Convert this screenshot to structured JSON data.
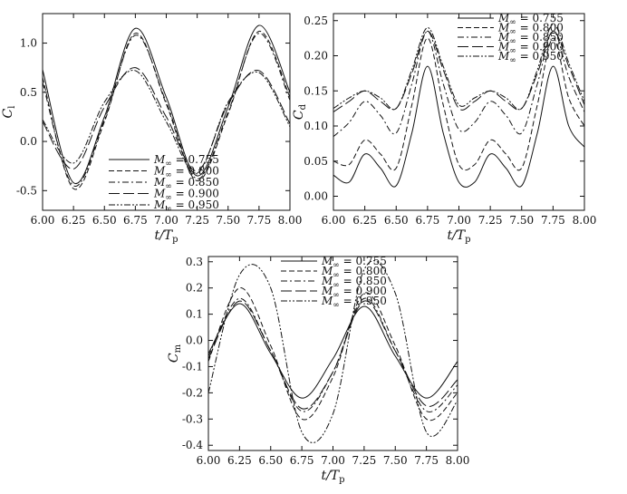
{
  "chart_data": [
    {
      "id": "cl",
      "type": "line",
      "ylabel": {
        "main": "C",
        "sub": "l"
      },
      "xlabel": {
        "main": "t/T",
        "sub": "p"
      },
      "xlim": [
        6.0,
        8.0
      ],
      "ylim": [
        -0.7,
        1.3
      ],
      "xticks": [
        6.0,
        6.25,
        6.5,
        6.75,
        7.0,
        7.25,
        7.5,
        7.75,
        8.0
      ],
      "xtick_labels": [
        "6.00",
        "6.25",
        "6.50",
        "6.75",
        "7.00",
        "7.25",
        "7.50",
        "7.75",
        "8.00"
      ],
      "yticks": [
        -0.5,
        0.0,
        0.5,
        1.0
      ],
      "ytick_labels": [
        "-0.5",
        "0.0",
        "0.5",
        "1.0"
      ],
      "legend": "bottom-center",
      "series": [
        {
          "name": "M∞ = 0.755",
          "label_main": "M",
          "label_sub": "∞",
          "label_rest": " = 0.755",
          "style": "solid",
          "x": [
            6.0,
            6.25,
            6.5,
            6.75,
            7.0,
            7.25,
            7.5,
            7.75,
            8.0
          ],
          "y": [
            0.73,
            -0.42,
            0.25,
            1.15,
            0.45,
            -0.35,
            0.35,
            1.18,
            0.5
          ]
        },
        {
          "name": "M∞ = 0.800",
          "label_main": "M",
          "label_sub": "∞",
          "label_rest": " = 0.800",
          "style": "dashed",
          "x": [
            6.0,
            6.25,
            6.5,
            6.75,
            7.0,
            7.25,
            7.5,
            7.75,
            8.0
          ],
          "y": [
            0.65,
            -0.48,
            0.2,
            1.1,
            0.38,
            -0.4,
            0.28,
            1.12,
            0.45
          ]
        },
        {
          "name": "M∞ = 0.850",
          "label_main": "M",
          "label_sub": "∞",
          "label_rest": " = 0.850",
          "style": "dashdot",
          "x": [
            6.0,
            6.25,
            6.5,
            6.75,
            7.0,
            7.25,
            7.5,
            7.75,
            8.0
          ],
          "y": [
            0.6,
            -0.45,
            0.22,
            1.08,
            0.4,
            -0.38,
            0.3,
            1.1,
            0.42
          ]
        },
        {
          "name": "M∞ = 0.900",
          "label_main": "M",
          "label_sub": "∞",
          "label_rest": " = 0.900",
          "style": "longdash",
          "x": [
            6.0,
            6.25,
            6.5,
            6.75,
            7.0,
            7.25,
            7.5,
            7.75,
            8.0
          ],
          "y": [
            0.2,
            -0.28,
            0.35,
            0.75,
            0.25,
            -0.3,
            0.38,
            0.72,
            0.18
          ]
        },
        {
          "name": "M∞ = 0.950",
          "label_main": "M",
          "label_sub": "∞",
          "label_rest": " = 0.950",
          "style": "dashdotdot",
          "x": [
            6.0,
            6.25,
            6.5,
            6.75,
            7.0,
            7.25,
            7.5,
            7.75,
            8.0
          ],
          "y": [
            0.22,
            -0.22,
            0.4,
            0.72,
            0.2,
            -0.32,
            0.4,
            0.7,
            0.15
          ]
        }
      ]
    },
    {
      "id": "cd",
      "type": "line",
      "ylabel": {
        "main": "C",
        "sub": "d"
      },
      "xlabel": {
        "main": "t/T",
        "sub": "p"
      },
      "xlim": [
        6.0,
        8.0
      ],
      "ylim": [
        -0.02,
        0.26
      ],
      "xticks": [
        6.0,
        6.25,
        6.5,
        6.75,
        7.0,
        7.25,
        7.5,
        7.75,
        8.0
      ],
      "xtick_labels": [
        "6.00",
        "6.25",
        "6.50",
        "6.75",
        "7.00",
        "7.25",
        "7.50",
        "7.75",
        "8.00"
      ],
      "yticks": [
        0.0,
        0.05,
        0.1,
        0.15,
        0.2,
        0.25
      ],
      "ytick_labels": [
        "0.00",
        "0.05",
        "0.10",
        "0.15",
        "0.20",
        "0.25"
      ],
      "legend": "top-right",
      "series": [
        {
          "name": "M∞ = 0.755",
          "label_main": "M",
          "label_sub": "∞",
          "label_rest": " = 0.755",
          "style": "solid",
          "x": [
            6.0,
            6.125,
            6.25,
            6.375,
            6.5,
            6.625,
            6.75,
            6.875,
            7.0,
            7.125,
            7.25,
            7.375,
            7.5,
            7.625,
            7.75,
            7.875,
            8.0
          ],
          "y": [
            0.03,
            0.02,
            0.06,
            0.04,
            0.015,
            0.09,
            0.185,
            0.09,
            0.02,
            0.02,
            0.06,
            0.04,
            0.015,
            0.09,
            0.185,
            0.1,
            0.07
          ]
        },
        {
          "name": "M∞ = 0.800",
          "label_main": "M",
          "label_sub": "∞",
          "label_rest": " = 0.800",
          "style": "dashed",
          "x": [
            6.0,
            6.125,
            6.25,
            6.375,
            6.5,
            6.625,
            6.75,
            6.875,
            7.0,
            7.125,
            7.25,
            7.375,
            7.5,
            7.625,
            7.75,
            7.875,
            8.0
          ],
          "y": [
            0.05,
            0.045,
            0.08,
            0.06,
            0.04,
            0.13,
            0.225,
            0.13,
            0.045,
            0.045,
            0.08,
            0.06,
            0.04,
            0.13,
            0.225,
            0.14,
            0.1
          ]
        },
        {
          "name": "M∞ = 0.850",
          "label_main": "M",
          "label_sub": "∞",
          "label_rest": " = 0.850",
          "style": "dashdot",
          "x": [
            6.0,
            6.125,
            6.25,
            6.375,
            6.5,
            6.625,
            6.75,
            6.875,
            7.0,
            7.125,
            7.25,
            7.375,
            7.5,
            7.625,
            7.75,
            7.875,
            8.0
          ],
          "y": [
            0.085,
            0.105,
            0.135,
            0.115,
            0.09,
            0.16,
            0.235,
            0.16,
            0.095,
            0.105,
            0.135,
            0.115,
            0.09,
            0.16,
            0.235,
            0.17,
            0.12
          ]
        },
        {
          "name": "M∞ = 0.900",
          "label_main": "M",
          "label_sub": "∞",
          "label_rest": " = 0.900",
          "style": "longdash",
          "x": [
            6.0,
            6.125,
            6.25,
            6.375,
            6.5,
            6.625,
            6.75,
            6.875,
            7.0,
            7.125,
            7.25,
            7.375,
            7.5,
            7.625,
            7.75,
            7.875,
            8.0
          ],
          "y": [
            0.12,
            0.135,
            0.15,
            0.135,
            0.125,
            0.175,
            0.235,
            0.18,
            0.125,
            0.135,
            0.15,
            0.135,
            0.125,
            0.175,
            0.235,
            0.185,
            0.13
          ]
        },
        {
          "name": "M∞ = 0.950",
          "label_main": "M",
          "label_sub": "∞",
          "label_rest": " = 0.950",
          "style": "dashdotdot",
          "x": [
            6.0,
            6.125,
            6.25,
            6.375,
            6.5,
            6.625,
            6.75,
            6.875,
            7.0,
            7.125,
            7.25,
            7.375,
            7.5,
            7.625,
            7.75,
            7.875,
            8.0
          ],
          "y": [
            0.125,
            0.14,
            0.15,
            0.14,
            0.125,
            0.18,
            0.24,
            0.185,
            0.13,
            0.14,
            0.15,
            0.14,
            0.125,
            0.18,
            0.245,
            0.19,
            0.135
          ]
        }
      ]
    },
    {
      "id": "cm",
      "type": "line",
      "ylabel": {
        "main": "C",
        "sub": "m"
      },
      "xlabel": {
        "main": "t/T",
        "sub": "p"
      },
      "xlim": [
        6.0,
        8.0
      ],
      "ylim": [
        -0.42,
        0.32
      ],
      "xticks": [
        6.0,
        6.25,
        6.5,
        6.75,
        7.0,
        7.25,
        7.5,
        7.75,
        8.0
      ],
      "xtick_labels": [
        "6.00",
        "6.25",
        "6.50",
        "6.75",
        "7.00",
        "7.25",
        "7.50",
        "7.75",
        "8.00"
      ],
      "yticks": [
        -0.4,
        -0.3,
        -0.2,
        -0.1,
        0.0,
        0.1,
        0.2,
        0.3
      ],
      "ytick_labels": [
        "-0.4",
        "-0.3",
        "-0.2",
        "-0.1",
        "0.0",
        "0.1",
        "0.2",
        "0.3"
      ],
      "legend": "top-center",
      "series": [
        {
          "name": "M∞ = 0.755",
          "label_main": "M",
          "label_sub": "∞",
          "label_rest": " = 0.755",
          "style": "solid",
          "x": [
            6.0,
            6.25,
            6.5,
            6.75,
            7.0,
            7.25,
            7.5,
            7.75,
            8.0
          ],
          "y": [
            -0.05,
            0.14,
            -0.05,
            -0.22,
            -0.07,
            0.13,
            -0.06,
            -0.22,
            -0.08
          ]
        },
        {
          "name": "M∞ = 0.800",
          "label_main": "M",
          "label_sub": "∞",
          "label_rest": " = 0.800",
          "style": "dashed",
          "x": [
            6.0,
            6.25,
            6.5,
            6.75,
            7.0,
            7.25,
            7.5,
            7.75,
            8.0
          ],
          "y": [
            -0.08,
            0.2,
            -0.02,
            -0.3,
            -0.14,
            0.18,
            -0.02,
            -0.3,
            -0.2
          ]
        },
        {
          "name": "M∞ = 0.850",
          "label_main": "M",
          "label_sub": "∞",
          "label_rest": " = 0.850",
          "style": "dashdot",
          "x": [
            6.0,
            6.25,
            6.5,
            6.75,
            7.0,
            7.25,
            7.5,
            7.75,
            8.0
          ],
          "y": [
            -0.06,
            0.16,
            -0.04,
            -0.27,
            -0.12,
            0.16,
            -0.04,
            -0.27,
            -0.17
          ]
        },
        {
          "name": "M∞ = 0.900",
          "label_main": "M",
          "label_sub": "∞",
          "label_rest": " = 0.900",
          "style": "longdash",
          "x": [
            6.0,
            6.25,
            6.5,
            6.75,
            7.0,
            7.25,
            7.5,
            7.75,
            8.0
          ],
          "y": [
            -0.07,
            0.15,
            -0.04,
            -0.26,
            -0.12,
            0.15,
            -0.04,
            -0.25,
            -0.15
          ]
        },
        {
          "name": "M∞ = 0.950",
          "label_main": "M",
          "label_sub": "∞",
          "label_rest": " = 0.950",
          "style": "dashdotdot",
          "x": [
            6.0,
            6.25,
            6.5,
            6.75,
            7.0,
            7.25,
            7.5,
            7.75,
            8.0
          ],
          "y": [
            -0.2,
            0.25,
            0.2,
            -0.35,
            -0.28,
            0.27,
            0.18,
            -0.35,
            -0.23
          ]
        }
      ]
    }
  ]
}
